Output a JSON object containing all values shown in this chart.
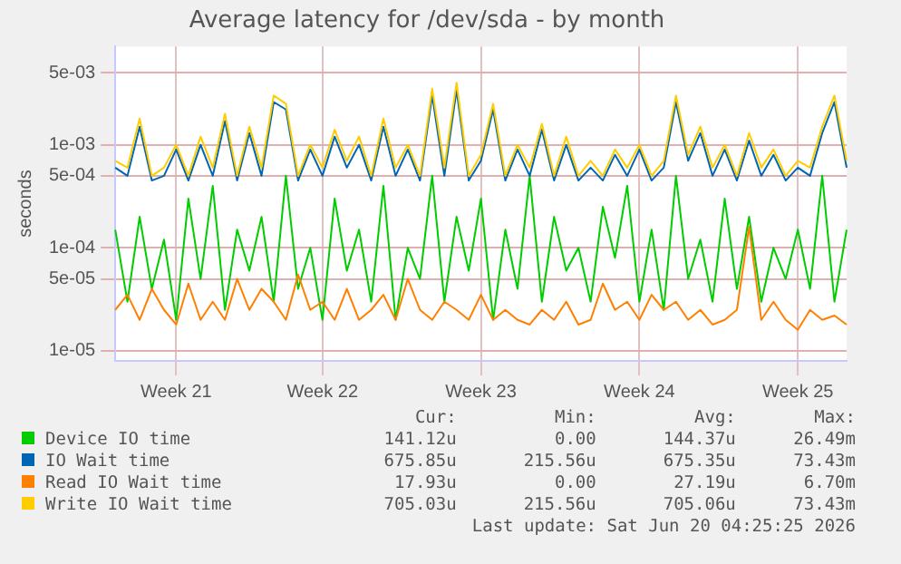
{
  "chart_data": {
    "type": "line",
    "title": "Average latency for /dev/sda - by month",
    "ylabel": "seconds",
    "log": true,
    "grid": true,
    "legend": "bottom",
    "marker": "none",
    "line_style": "solid",
    "categories": [
      null,
      null,
      null,
      null,
      null,
      "Week 21",
      null,
      null,
      null,
      null,
      null,
      null,
      null,
      null,
      null,
      null,
      null,
      "Week 22",
      null,
      null,
      null,
      null,
      null,
      null,
      null,
      null,
      null,
      null,
      null,
      null,
      "Week 23",
      null,
      null,
      null,
      null,
      null,
      null,
      null,
      null,
      null,
      null,
      null,
      null,
      "Week 24",
      null,
      null,
      null,
      null,
      null,
      null,
      null,
      null,
      null,
      null,
      null,
      null,
      "Week 25",
      null,
      null,
      null,
      null
    ],
    "ylim": [
      8e-06,
      0.009
    ],
    "yticks": [
      {
        "value": 1e-05,
        "label": "1e-05"
      },
      {
        "value": 5e-05,
        "label": "5e-05"
      },
      {
        "value": 0.0001,
        "label": "1e-04"
      },
      {
        "value": 0.0005,
        "label": "5e-04"
      },
      {
        "value": 0.001,
        "label": "1e-03"
      },
      {
        "value": 0.005,
        "label": "5e-03"
      }
    ],
    "series": [
      {
        "name": "Device IO time",
        "color": "#00cc00",
        "values": [
          0.00015,
          3e-05,
          0.0002,
          4e-05,
          0.00012,
          2e-05,
          0.0003,
          5e-05,
          0.0004,
          2.5e-05,
          0.00015,
          6e-05,
          0.0002,
          3e-05,
          0.0005,
          4e-05,
          0.0001,
          2e-05,
          0.0003,
          6e-05,
          0.00015,
          3e-05,
          0.0004,
          2e-05,
          0.0001,
          5e-05,
          0.0005,
          3e-05,
          0.0002,
          6e-05,
          0.0003,
          2e-05,
          0.00015,
          4e-05,
          0.0005,
          3e-05,
          0.0002,
          6e-05,
          0.0001,
          3e-05,
          0.00025,
          8e-05,
          0.0004,
          3e-05,
          0.00015,
          2.5e-05,
          0.0005,
          5e-05,
          0.00012,
          3e-05,
          0.0003,
          4e-05,
          0.0002,
          3e-05,
          0.0001,
          5e-05,
          0.00015,
          4e-05,
          0.0005,
          3e-05,
          0.00015
        ]
      },
      {
        "name": "IO Wait time",
        "color": "#0066b3",
        "values": [
          0.0006,
          0.0005,
          0.0015,
          0.00045,
          0.0005,
          0.0009,
          0.00045,
          0.001,
          0.0005,
          0.0017,
          0.00045,
          0.0013,
          0.0005,
          0.0026,
          0.0022,
          0.00045,
          0.0009,
          0.0005,
          0.0012,
          0.0006,
          0.001,
          0.00045,
          0.0015,
          0.0005,
          0.0009,
          0.00045,
          0.003,
          0.0005,
          0.0034,
          0.00045,
          0.0007,
          0.0022,
          0.00045,
          0.0009,
          0.0005,
          0.0014,
          0.00045,
          0.001,
          0.00045,
          0.0006,
          0.00045,
          0.0008,
          0.0005,
          0.0009,
          0.00045,
          0.0006,
          0.0026,
          0.0007,
          0.0013,
          0.0005,
          0.0009,
          0.00045,
          0.0011,
          0.0005,
          0.0008,
          0.00045,
          0.0006,
          0.0005,
          0.0013,
          0.0026,
          0.0006
        ]
      },
      {
        "name": "Read IO Wait time",
        "color": "#ff8000",
        "values": [
          2.5e-05,
          3.5e-05,
          2e-05,
          4e-05,
          2.5e-05,
          1.8e-05,
          4.5e-05,
          2e-05,
          3e-05,
          2e-05,
          5e-05,
          2.5e-05,
          4e-05,
          3e-05,
          2e-05,
          5.5e-05,
          2.5e-05,
          3e-05,
          2e-05,
          4e-05,
          2e-05,
          2.5e-05,
          3.5e-05,
          2e-05,
          5e-05,
          2.5e-05,
          2e-05,
          3e-05,
          2.5e-05,
          2e-05,
          3.5e-05,
          2e-05,
          2.5e-05,
          2e-05,
          1.8e-05,
          2.5e-05,
          2e-05,
          3e-05,
          1.8e-05,
          2e-05,
          4.5e-05,
          2.5e-05,
          3e-05,
          2e-05,
          3.5e-05,
          2.5e-05,
          3e-05,
          2e-05,
          2.5e-05,
          1.8e-05,
          2e-05,
          2.5e-05,
          0.00016,
          2e-05,
          3e-05,
          2e-05,
          1.6e-05,
          2.5e-05,
          2e-05,
          2.2e-05,
          1.8e-05
        ]
      },
      {
        "name": "Write IO Wait time",
        "color": "#ffcc00",
        "values": [
          0.0007,
          0.0006,
          0.0018,
          0.0005,
          0.0006,
          0.001,
          0.0005,
          0.0012,
          0.0006,
          0.002,
          0.0005,
          0.0015,
          0.0006,
          0.003,
          0.0025,
          0.0005,
          0.001,
          0.0006,
          0.0014,
          0.0007,
          0.0012,
          0.0005,
          0.0018,
          0.0006,
          0.001,
          0.0005,
          0.0035,
          0.0006,
          0.004,
          0.0005,
          0.0008,
          0.0025,
          0.0005,
          0.001,
          0.0006,
          0.0016,
          0.0005,
          0.0012,
          0.0005,
          0.0007,
          0.0005,
          0.0009,
          0.0006,
          0.001,
          0.0005,
          0.0007,
          0.003,
          0.0008,
          0.0015,
          0.0006,
          0.001,
          0.0005,
          0.0013,
          0.0006,
          0.0009,
          0.0005,
          0.0007,
          0.0006,
          0.0015,
          0.003,
          0.0007
        ]
      }
    ],
    "annotations": [
      "Cur:",
      "Min:",
      "Avg:",
      "Max:",
      "141.12u",
      "0.00",
      "144.37u",
      "26.49m",
      "675.85u",
      "215.56u",
      "675.35u",
      "73.43m",
      "17.93u",
      "0.00",
      "27.19u",
      "6.70m",
      "705.03u",
      "215.56u",
      "705.06u",
      "73.43m",
      "Last update: Sat Jun 20 04:25:25 2026"
    ]
  }
}
